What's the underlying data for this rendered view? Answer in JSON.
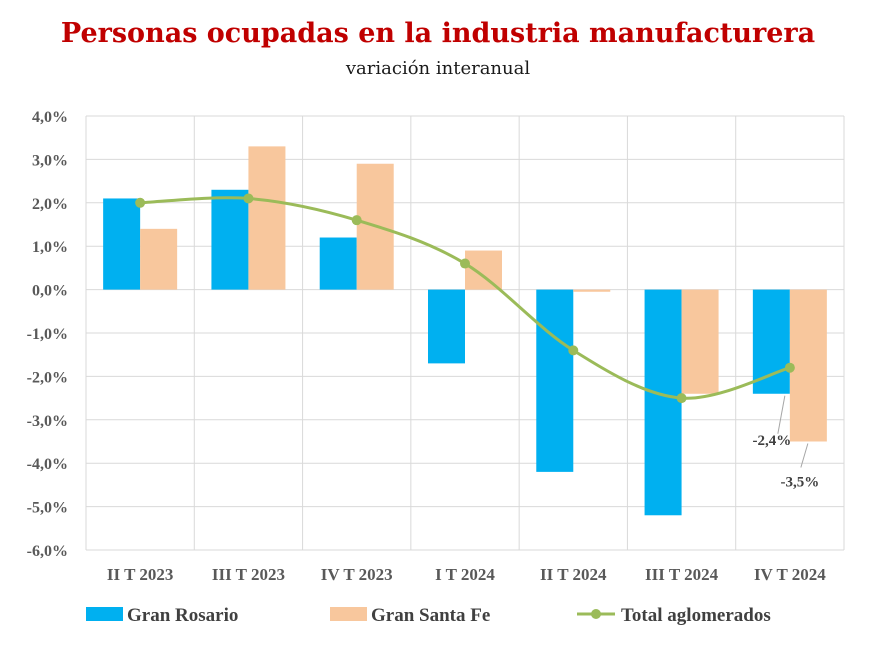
{
  "chart_data": {
    "type": "bar",
    "title": "Personas ocupadas en la industria manufacturera",
    "subtitle": "variación interanual",
    "categories": [
      "II T 2023",
      "III T 2023",
      "IV T 2023",
      "I T 2024",
      "II T 2024",
      "III T 2024",
      "IV T 2024"
    ],
    "series": [
      {
        "name": "Gran Rosario",
        "type": "bar",
        "color": "#00b0f0",
        "values": [
          2.1,
          2.3,
          1.2,
          -1.7,
          -4.2,
          -5.2,
          -2.4
        ]
      },
      {
        "name": "Gran Santa Fe",
        "type": "bar",
        "color": "#f8c79d",
        "values": [
          1.4,
          3.3,
          2.9,
          0.9,
          -0.05,
          -2.4,
          -3.5
        ]
      },
      {
        "name": "Total aglomerados",
        "type": "line",
        "color": "#9bbb59",
        "values": [
          2.0,
          2.1,
          1.6,
          0.6,
          -1.4,
          -2.5,
          -1.8
        ]
      }
    ],
    "yticks": [
      "4,0%",
      "3,0%",
      "2,0%",
      "1,0%",
      "0,0%",
      "-1,0%",
      "-2,0%",
      "-3,0%",
      "-4,0%",
      "-5,0%",
      "-6,0%"
    ],
    "ylim": [
      -6,
      4
    ],
    "grid": true,
    "legend_position": "bottom",
    "annotations": [
      {
        "series": "Gran Rosario",
        "category": "IV T 2024",
        "text": "-2,4%"
      },
      {
        "series": "Gran Santa Fe",
        "category": "IV T 2024",
        "text": "-3,5%"
      }
    ]
  }
}
